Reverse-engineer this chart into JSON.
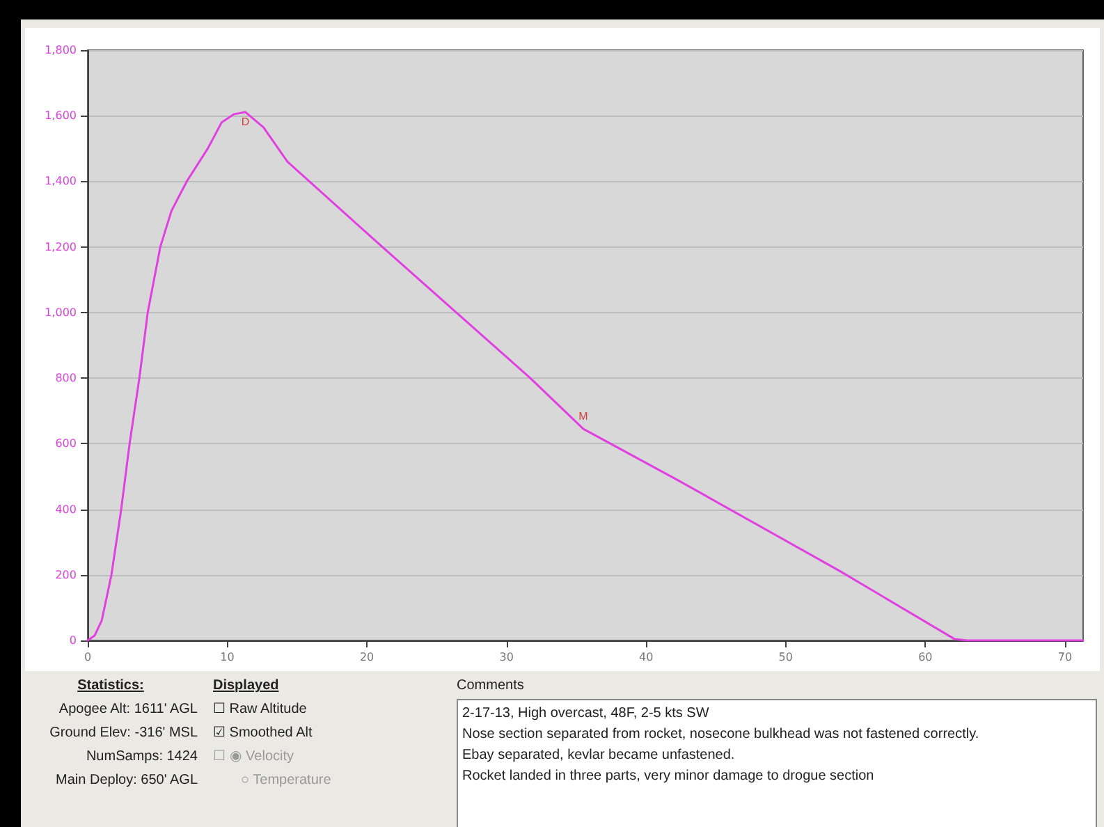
{
  "chart_data": {
    "type": "line",
    "x": [
      0,
      0.5,
      1,
      1.7,
      2.4,
      3.0,
      3.7,
      4.3,
      5.2,
      6.0,
      7.1,
      8.6,
      9.6,
      10.5,
      11.3,
      12.6,
      14.3,
      21.1,
      26.4,
      31.7,
      35.5,
      42.3,
      53.9,
      62.1,
      63.0,
      71.3
    ],
    "series": [
      {
        "color": "#e040e0",
        "values": [
          0,
          15,
          60,
          200,
          400,
          600,
          800,
          1000,
          1200,
          1310,
          1400,
          1500,
          1580,
          1605,
          1611,
          1564,
          1460,
          1200,
          1000,
          800,
          645,
          488,
          211,
          4,
          0,
          0
        ]
      }
    ],
    "xlim": [
      0,
      71.3
    ],
    "xticks": [
      0,
      10,
      20,
      30,
      40,
      50,
      60,
      70
    ],
    "ylim": [
      0,
      1800
    ],
    "yticks": [
      0,
      200,
      400,
      600,
      800,
      {
        "value": 1000,
        "label": "1,000"
      },
      {
        "value": 1200,
        "label": "1,200"
      },
      {
        "value": 1400,
        "label": "1,400"
      },
      {
        "value": 1600,
        "label": "1,600"
      },
      {
        "value": 1800,
        "label": "1,800"
      }
    ],
    "grid": "y",
    "marker": "none",
    "line_style": "solid",
    "annotations": [
      {
        "text": "D",
        "x": 11.3,
        "y": 1611
      },
      {
        "text": "M",
        "x": 35.5,
        "y": 645
      },
      "Statistics:",
      "Apogee Alt: 1611' AGL",
      "Ground Elev: -316' MSL",
      "NumSamps: 1424",
      "Main Deploy: 650' AGL",
      "Displayed",
      "☐ Raw Altitude",
      "☑ Smoothed Alt",
      "☐ ◉ Velocity",
      "○ Temperature",
      "Comments",
      "2-17-13, High overcast, 48F, 2-5 kts SW",
      "Nose section separated from rocket, nosecone bulkhead was not fastened correctly.",
      "Ebay separated, kevlar became unfastened.",
      "Rocket landed in three parts, very minor damage to drogue section"
    ]
  }
}
